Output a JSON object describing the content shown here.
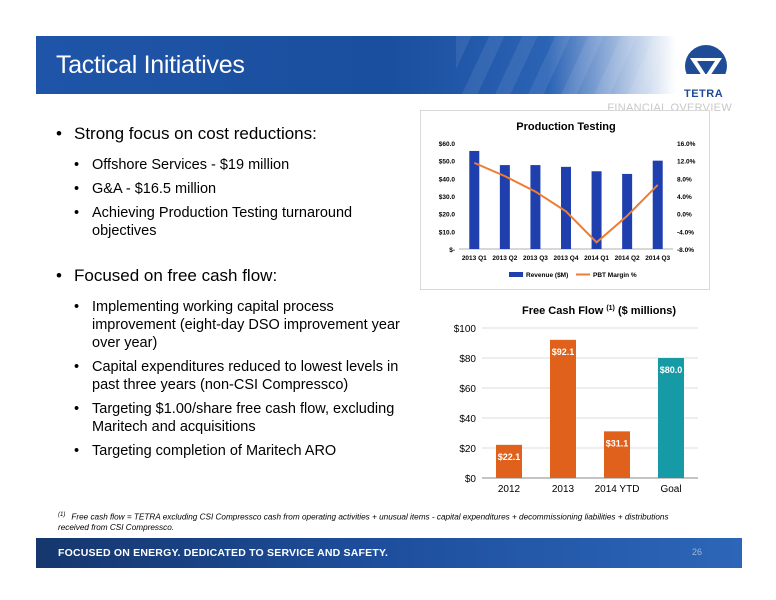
{
  "title": "Tactical Initiatives",
  "logo": {
    "text": "TETRA"
  },
  "section_label": "FINANCIAL OVERVIEW",
  "bullets": [
    {
      "text": "Strong focus on cost reductions:",
      "subs": [
        "Offshore Services - $19 million",
        "G&A  - $16.5 million",
        "Achieving Production Testing turnaround objectives"
      ]
    },
    {
      "text": "Focused on free cash flow:",
      "subs": [
        "Implementing working capital process improvement (eight-day DSO improvement year over year)",
        "Capital expenditures reduced to lowest levels in past three years (non-CSI Compressco)",
        "Targeting $1.00/share free cash flow, excluding Maritech and acquisitions",
        "Targeting completion of Maritech ARO"
      ]
    }
  ],
  "chart_data": [
    {
      "type": "bar",
      "title": "Production Testing",
      "categories": [
        "2013 Q1",
        "2013 Q2",
        "2013 Q3",
        "2013 Q4",
        "2014 Q1",
        "2014 Q2",
        "2014 Q3"
      ],
      "series": [
        {
          "name": "Revenue ($M)",
          "kind": "bar",
          "axis": "left",
          "color": "#1f3fae",
          "values": [
            55.5,
            47.5,
            47.5,
            46.5,
            44,
            42.5,
            50
          ]
        },
        {
          "name": "PBT Margin %",
          "kind": "line",
          "axis": "right",
          "color": "#ed7d31",
          "values": [
            11.5,
            8.5,
            5.0,
            0.5,
            -6.5,
            -0.5,
            6.5
          ]
        }
      ],
      "y_left": {
        "ticks": [
          "$-",
          "$10.0",
          "$20.0",
          "$30.0",
          "$40.0",
          "$50.0",
          "$60.0"
        ],
        "min": 0,
        "max": 60
      },
      "y_right": {
        "ticks": [
          "-8.0%",
          "-4.0%",
          "0.0%",
          "4.0%",
          "8.0%",
          "12.0%",
          "16.0%"
        ],
        "min": -8,
        "max": 16
      },
      "legend_position": "bottom",
      "grid": false
    },
    {
      "type": "bar",
      "title_main": "Free Cash Flow ",
      "title_sup": "(1)",
      "title_tail": " ($ millions)",
      "categories": [
        "2012",
        "2013",
        "2014 YTD",
        "Goal"
      ],
      "values": [
        22.1,
        92.1,
        31.1,
        80.0
      ],
      "data_labels": [
        "$22.1",
        "$92.1",
        "$31.1",
        "$80.0"
      ],
      "colors": [
        "#e0611c",
        "#e0611c",
        "#e0611c",
        "#159aa6"
      ],
      "y_ticks": [
        "$0",
        "$20",
        "$40",
        "$60",
        "$80",
        "$100"
      ],
      "ylim": [
        0,
        100
      ],
      "grid": true
    }
  ],
  "footnote": {
    "marker": "(1)",
    "text": "Free cash flow = TETRA excluding CSI Compressco cash from operating activities + unusual items - capital expenditures + decommissioning liabilities + distributions received from CSI Compressco."
  },
  "footer": {
    "tagline": "FOCUSED ON ENERGY. DEDICATED TO SERVICE AND SAFETY.",
    "page": "26"
  }
}
